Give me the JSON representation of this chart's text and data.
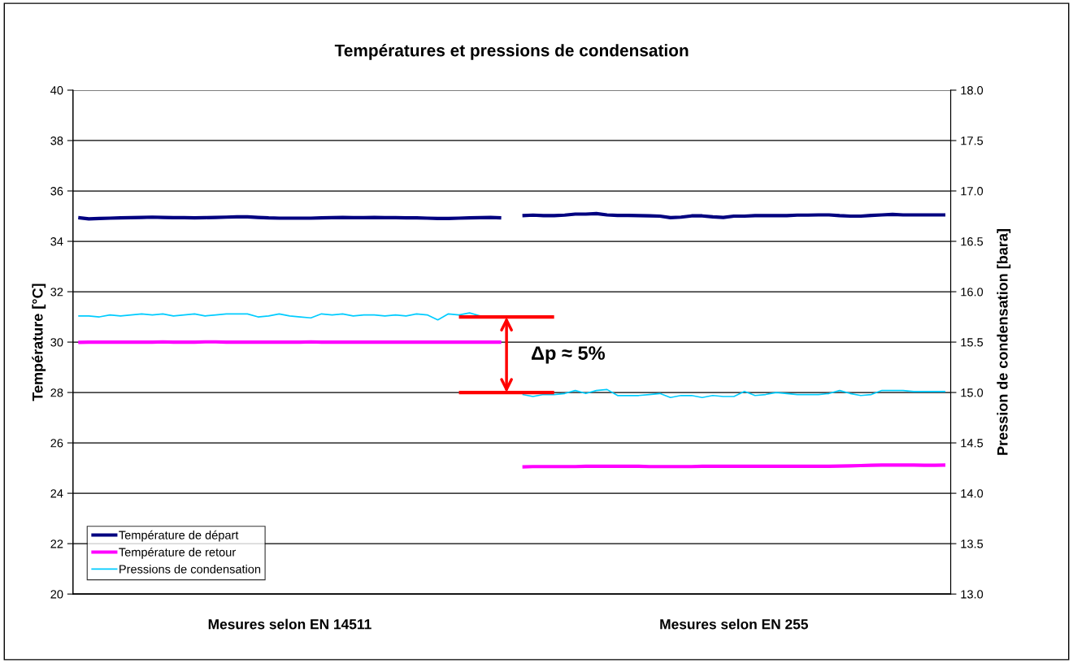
{
  "chart_data": {
    "type": "line",
    "title": "Températures et pressions de condensation",
    "ylabel": "Température [°C]",
    "y2label": "Pression de condensation [bara]",
    "categories": [
      null,
      null,
      null,
      null,
      null,
      null,
      null,
      null,
      null,
      null,
      null,
      null,
      null,
      null,
      null,
      null,
      null,
      null,
      null,
      null,
      "Mesures selon EN 14511",
      null,
      null,
      null,
      null,
      null,
      null,
      null,
      null,
      null,
      null,
      null,
      null,
      null,
      null,
      null,
      null,
      null,
      null,
      null,
      null,
      null,
      null,
      null,
      null,
      null,
      null,
      null,
      null,
      null,
      null,
      null,
      null,
      null,
      null,
      null,
      null,
      null,
      null,
      null,
      null,
      null,
      "Mesures selon EN 255",
      null,
      null,
      null,
      null,
      null,
      null,
      null,
      null,
      null,
      null,
      null,
      null,
      null,
      null,
      null,
      null,
      null,
      null,
      null,
      null
    ],
    "ylim": [
      20,
      40
    ],
    "yticks": [
      20,
      22,
      24,
      26,
      28,
      30,
      32,
      34,
      36,
      38,
      40
    ],
    "y2lim": [
      13,
      18
    ],
    "y2ticks": [
      {
        "value": 13,
        "label": "13.0"
      },
      {
        "value": 13.5,
        "label": "13.5"
      },
      {
        "value": 14,
        "label": "14.0"
      },
      {
        "value": 14.5,
        "label": "14.5"
      },
      {
        "value": 15,
        "label": "15.0"
      },
      {
        "value": 15.5,
        "label": "15.5"
      },
      {
        "value": 16,
        "label": "16.0"
      },
      {
        "value": 16.5,
        "label": "16.5"
      },
      {
        "value": 17,
        "label": "17.0"
      },
      {
        "value": 17.5,
        "label": "17.5"
      },
      {
        "value": 18,
        "label": "18.0"
      }
    ],
    "grid": "y",
    "legend": "bottom left",
    "marker": "none",
    "line_style": "solid",
    "annotations": [
      "Δp ≈ 5%"
    ],
    "series": [
      {
        "name": "Température de départ",
        "color": "#000080",
        "values": [
          34.94,
          34.89,
          34.91,
          34.92,
          34.93,
          34.94,
          34.95,
          34.96,
          34.95,
          34.94,
          34.94,
          34.93,
          34.94,
          34.95,
          34.96,
          34.97,
          34.97,
          34.95,
          34.93,
          34.92,
          34.92,
          34.92,
          34.92,
          34.93,
          34.94,
          34.95,
          34.94,
          34.94,
          34.95,
          34.94,
          34.94,
          34.93,
          34.93,
          34.92,
          34.91,
          34.91,
          34.92,
          34.93,
          34.94,
          34.95,
          34.93,
          null,
          35.02,
          35.04,
          35.02,
          35.02,
          35.04,
          35.08,
          35.08,
          35.1,
          35.05,
          35.03,
          35.03,
          35.02,
          35.01,
          35.0,
          34.94,
          34.96,
          35.01,
          35.01,
          34.97,
          34.95,
          35.0,
          35.0,
          35.02,
          35.02,
          35.02,
          35.02,
          35.04,
          35.04,
          35.05,
          35.05,
          35.02,
          35.0,
          35.0,
          35.03,
          35.05,
          35.07,
          35.05,
          35.05,
          35.05,
          35.05,
          35.05
        ]
      },
      {
        "name": "Température de retour",
        "color": "#ff00ff",
        "values": [
          29.99,
          30.0,
          30.0,
          30.0,
          30.0,
          30.0,
          30.0,
          30.0,
          30.01,
          30.0,
          30.0,
          30.0,
          30.01,
          30.01,
          30.0,
          30.0,
          30.0,
          30.0,
          30.0,
          30.0,
          30.0,
          30.0,
          30.01,
          30.0,
          30.0,
          30.0,
          30.0,
          30.0,
          30.0,
          30.0,
          30.0,
          30.0,
          30.0,
          30.0,
          30.0,
          30.0,
          30.0,
          30.0,
          30.0,
          30.0,
          30.0,
          null,
          25.05,
          25.06,
          25.06,
          25.06,
          25.06,
          25.06,
          25.07,
          25.07,
          25.07,
          25.07,
          25.07,
          25.07,
          25.06,
          25.06,
          25.06,
          25.06,
          25.06,
          25.07,
          25.07,
          25.07,
          25.07,
          25.07,
          25.07,
          25.07,
          25.07,
          25.07,
          25.07,
          25.07,
          25.07,
          25.07,
          25.08,
          25.09,
          25.1,
          25.11,
          25.12,
          25.12,
          25.12,
          25.12,
          25.11,
          25.11,
          25.12
        ]
      },
      {
        "name": "Pressions de condensation",
        "color": "#00ccff",
        "axis": "y2",
        "values": [
          15.76,
          15.76,
          15.75,
          15.77,
          15.76,
          15.77,
          15.78,
          15.77,
          15.78,
          15.76,
          15.77,
          15.78,
          15.76,
          15.77,
          15.78,
          15.78,
          15.78,
          15.75,
          15.76,
          15.78,
          15.76,
          15.75,
          15.74,
          15.78,
          15.77,
          15.78,
          15.76,
          15.77,
          15.77,
          15.76,
          15.77,
          15.76,
          15.78,
          15.77,
          15.72,
          15.78,
          15.77,
          15.79,
          15.76,
          null,
          null,
          null,
          14.98,
          14.96,
          14.98,
          14.98,
          14.99,
          15.02,
          14.99,
          15.02,
          15.03,
          14.97,
          14.97,
          14.97,
          14.98,
          14.99,
          14.95,
          14.97,
          14.97,
          14.95,
          14.97,
          14.96,
          14.96,
          15.01,
          14.97,
          14.98,
          15.0,
          14.99,
          14.98,
          14.98,
          14.98,
          14.99,
          15.02,
          14.99,
          14.97,
          14.98,
          15.02,
          15.02,
          15.02,
          15.01,
          15.01,
          15.01,
          15.01
        ]
      },
      {
        "color": "#ff0000",
        "axis": "y2",
        "values": [
          null,
          null,
          null,
          null,
          null,
          null,
          null,
          null,
          null,
          null,
          null,
          null,
          null,
          null,
          null,
          null,
          null,
          null,
          null,
          null,
          null,
          null,
          null,
          null,
          null,
          null,
          null,
          null,
          null,
          null,
          null,
          null,
          null,
          null,
          null,
          null,
          15.75,
          15.75,
          15.75,
          15.75,
          15.75,
          15.75,
          15.75,
          15.75,
          15.75,
          15.75,
          null,
          null,
          null,
          null,
          null,
          null,
          null,
          null,
          null,
          null,
          null,
          null,
          null,
          null,
          null,
          null,
          null,
          null,
          null,
          null,
          null,
          null,
          null,
          null,
          null,
          null,
          null,
          null,
          null,
          null,
          null,
          null,
          null,
          null,
          null,
          null,
          null
        ]
      },
      {
        "color": "#ff0000",
        "axis": "y2",
        "values": [
          null,
          null,
          null,
          null,
          null,
          null,
          null,
          null,
          null,
          null,
          null,
          null,
          null,
          null,
          null,
          null,
          null,
          null,
          null,
          null,
          null,
          null,
          null,
          null,
          null,
          null,
          null,
          null,
          null,
          null,
          null,
          null,
          null,
          null,
          null,
          null,
          15.0,
          15.0,
          15.0,
          15.0,
          15.0,
          15.0,
          15.0,
          15.0,
          15.0,
          15.0,
          null,
          null,
          null,
          null,
          null,
          null,
          null,
          null,
          null,
          null,
          null,
          null,
          null,
          null,
          null,
          null,
          null,
          null,
          null,
          null,
          null,
          null,
          null,
          null,
          null,
          null,
          null,
          null,
          null,
          null,
          null,
          null,
          null,
          null,
          null,
          null,
          null
        ]
      }
    ]
  }
}
